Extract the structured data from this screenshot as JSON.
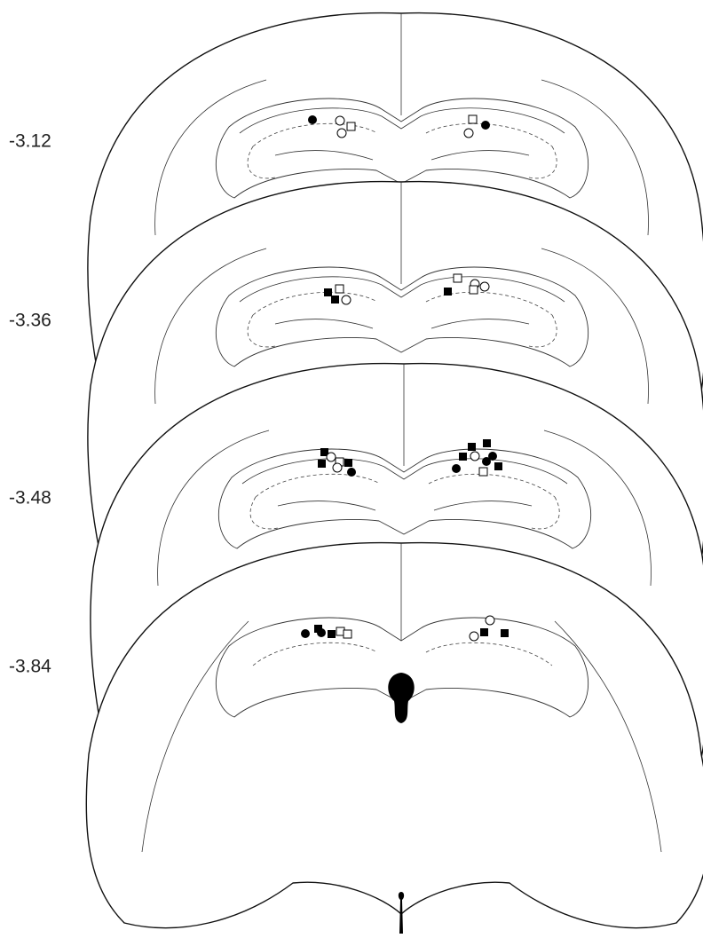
{
  "sections": [
    {
      "label": "-3.12"
    },
    {
      "label": "-3.36"
    },
    {
      "label": "-3.48"
    },
    {
      "label": "-3.84"
    }
  ]
}
